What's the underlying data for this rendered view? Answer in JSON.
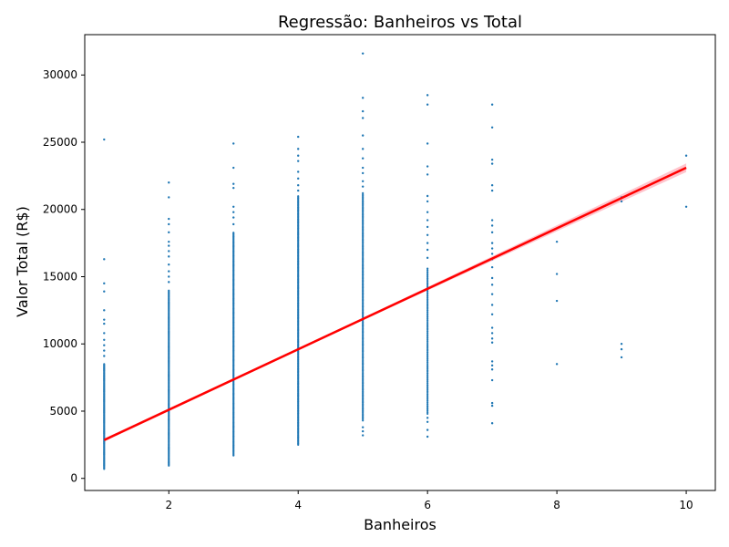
{
  "chart_data": {
    "type": "scatter",
    "title": "Regressão: Banheiros vs Total",
    "xlabel": "Banheiros",
    "ylabel": "Valor Total (R$)",
    "xlim": [
      0.7,
      10.45
    ],
    "ylim": [
      -900,
      33000
    ],
    "x_ticks": [
      2,
      4,
      6,
      8,
      10
    ],
    "y_ticks": [
      0,
      5000,
      10000,
      15000,
      20000,
      25000,
      30000
    ],
    "grid": false,
    "point_color": "#1f77b4",
    "regression_color": "#ff0000",
    "ci_color": "#ffb6c1",
    "regression": {
      "x": [
        1,
        10
      ],
      "y": [
        2850,
        23100
      ]
    },
    "confidence_band": {
      "x": [
        1,
        2,
        3,
        4,
        5,
        6,
        7,
        8,
        9,
        10
      ],
      "lower": [
        2740,
        4990,
        7250,
        9510,
        11750,
        13970,
        16180,
        18380,
        20580,
        22780
      ],
      "upper": [
        2960,
        5210,
        7450,
        9690,
        11950,
        14230,
        16520,
        18820,
        21120,
        23420
      ]
    },
    "strips": [
      {
        "x": 1,
        "min": 700,
        "max": 8500,
        "step": 65
      },
      {
        "x": 2,
        "min": 950,
        "max": 14000,
        "step": 70
      },
      {
        "x": 3,
        "min": 1700,
        "max": 18300,
        "step": 75
      },
      {
        "x": 4,
        "min": 2500,
        "max": 21000,
        "step": 80
      },
      {
        "x": 5,
        "min": 4300,
        "max": 21300,
        "step": 95
      },
      {
        "x": 6,
        "min": 4800,
        "max": 15600,
        "step": 120
      }
    ],
    "points": [
      {
        "x": 1,
        "y": 25200
      },
      {
        "x": 1,
        "y": 16300
      },
      {
        "x": 1,
        "y": 14500
      },
      {
        "x": 1,
        "y": 13900
      },
      {
        "x": 1,
        "y": 12500
      },
      {
        "x": 1,
        "y": 11800
      },
      {
        "x": 1,
        "y": 11500
      },
      {
        "x": 1,
        "y": 10800
      },
      {
        "x": 1,
        "y": 10300
      },
      {
        "x": 1,
        "y": 9900
      },
      {
        "x": 1,
        "y": 9500
      },
      {
        "x": 1,
        "y": 9100
      },
      {
        "x": 2,
        "y": 22000
      },
      {
        "x": 2,
        "y": 20900
      },
      {
        "x": 2,
        "y": 19300
      },
      {
        "x": 2,
        "y": 18900
      },
      {
        "x": 2,
        "y": 18300
      },
      {
        "x": 2,
        "y": 17600
      },
      {
        "x": 2,
        "y": 17300
      },
      {
        "x": 2,
        "y": 16900
      },
      {
        "x": 2,
        "y": 16500
      },
      {
        "x": 2,
        "y": 15900
      },
      {
        "x": 2,
        "y": 15400
      },
      {
        "x": 2,
        "y": 15000
      },
      {
        "x": 2,
        "y": 14600
      },
      {
        "x": 3,
        "y": 24900
      },
      {
        "x": 3,
        "y": 23100
      },
      {
        "x": 3,
        "y": 21900
      },
      {
        "x": 3,
        "y": 21600
      },
      {
        "x": 3,
        "y": 20200
      },
      {
        "x": 3,
        "y": 19800
      },
      {
        "x": 3,
        "y": 19400
      },
      {
        "x": 3,
        "y": 18900
      },
      {
        "x": 4,
        "y": 25400
      },
      {
        "x": 4,
        "y": 24500
      },
      {
        "x": 4,
        "y": 24000
      },
      {
        "x": 4,
        "y": 23600
      },
      {
        "x": 4,
        "y": 22800
      },
      {
        "x": 4,
        "y": 22300
      },
      {
        "x": 4,
        "y": 21800
      },
      {
        "x": 4,
        "y": 21400
      },
      {
        "x": 5,
        "y": 31600
      },
      {
        "x": 5,
        "y": 28300
      },
      {
        "x": 5,
        "y": 27300
      },
      {
        "x": 5,
        "y": 26800
      },
      {
        "x": 5,
        "y": 25500
      },
      {
        "x": 5,
        "y": 24500
      },
      {
        "x": 5,
        "y": 23800
      },
      {
        "x": 5,
        "y": 23100
      },
      {
        "x": 5,
        "y": 22700
      },
      {
        "x": 5,
        "y": 22100
      },
      {
        "x": 5,
        "y": 21700
      },
      {
        "x": 5,
        "y": 3800
      },
      {
        "x": 5,
        "y": 3500
      },
      {
        "x": 5,
        "y": 3200
      },
      {
        "x": 6,
        "y": 28500
      },
      {
        "x": 6,
        "y": 27800
      },
      {
        "x": 6,
        "y": 24900
      },
      {
        "x": 6,
        "y": 23200
      },
      {
        "x": 6,
        "y": 22600
      },
      {
        "x": 6,
        "y": 21000
      },
      {
        "x": 6,
        "y": 20600
      },
      {
        "x": 6,
        "y": 19800
      },
      {
        "x": 6,
        "y": 19200
      },
      {
        "x": 6,
        "y": 18700
      },
      {
        "x": 6,
        "y": 18100
      },
      {
        "x": 6,
        "y": 17500
      },
      {
        "x": 6,
        "y": 17000
      },
      {
        "x": 6,
        "y": 16400
      },
      {
        "x": 6,
        "y": 4500
      },
      {
        "x": 6,
        "y": 4200
      },
      {
        "x": 6,
        "y": 3600
      },
      {
        "x": 6,
        "y": 3100
      },
      {
        "x": 7,
        "y": 27800
      },
      {
        "x": 7,
        "y": 26100
      },
      {
        "x": 7,
        "y": 23700
      },
      {
        "x": 7,
        "y": 23400
      },
      {
        "x": 7,
        "y": 21800
      },
      {
        "x": 7,
        "y": 21400
      },
      {
        "x": 7,
        "y": 19200
      },
      {
        "x": 7,
        "y": 18800
      },
      {
        "x": 7,
        "y": 18300
      },
      {
        "x": 7,
        "y": 17500
      },
      {
        "x": 7,
        "y": 17100
      },
      {
        "x": 7,
        "y": 16700
      },
      {
        "x": 7,
        "y": 16300
      },
      {
        "x": 7,
        "y": 15700
      },
      {
        "x": 7,
        "y": 14900
      },
      {
        "x": 7,
        "y": 14400
      },
      {
        "x": 7,
        "y": 13700
      },
      {
        "x": 7,
        "y": 12900
      },
      {
        "x": 7,
        "y": 12200
      },
      {
        "x": 7,
        "y": 11200
      },
      {
        "x": 7,
        "y": 10800
      },
      {
        "x": 7,
        "y": 10400
      },
      {
        "x": 7,
        "y": 10100
      },
      {
        "x": 7,
        "y": 8700
      },
      {
        "x": 7,
        "y": 8400
      },
      {
        "x": 7,
        "y": 8100
      },
      {
        "x": 7,
        "y": 7300
      },
      {
        "x": 7,
        "y": 5600
      },
      {
        "x": 7,
        "y": 5400
      },
      {
        "x": 7,
        "y": 4100
      },
      {
        "x": 8,
        "y": 17600
      },
      {
        "x": 8,
        "y": 15200
      },
      {
        "x": 8,
        "y": 13200
      },
      {
        "x": 8,
        "y": 8500
      },
      {
        "x": 9,
        "y": 20900
      },
      {
        "x": 9,
        "y": 20600
      },
      {
        "x": 9,
        "y": 10000
      },
      {
        "x": 9,
        "y": 9600
      },
      {
        "x": 9,
        "y": 9000
      },
      {
        "x": 10,
        "y": 24000
      },
      {
        "x": 10,
        "y": 20200
      }
    ]
  }
}
